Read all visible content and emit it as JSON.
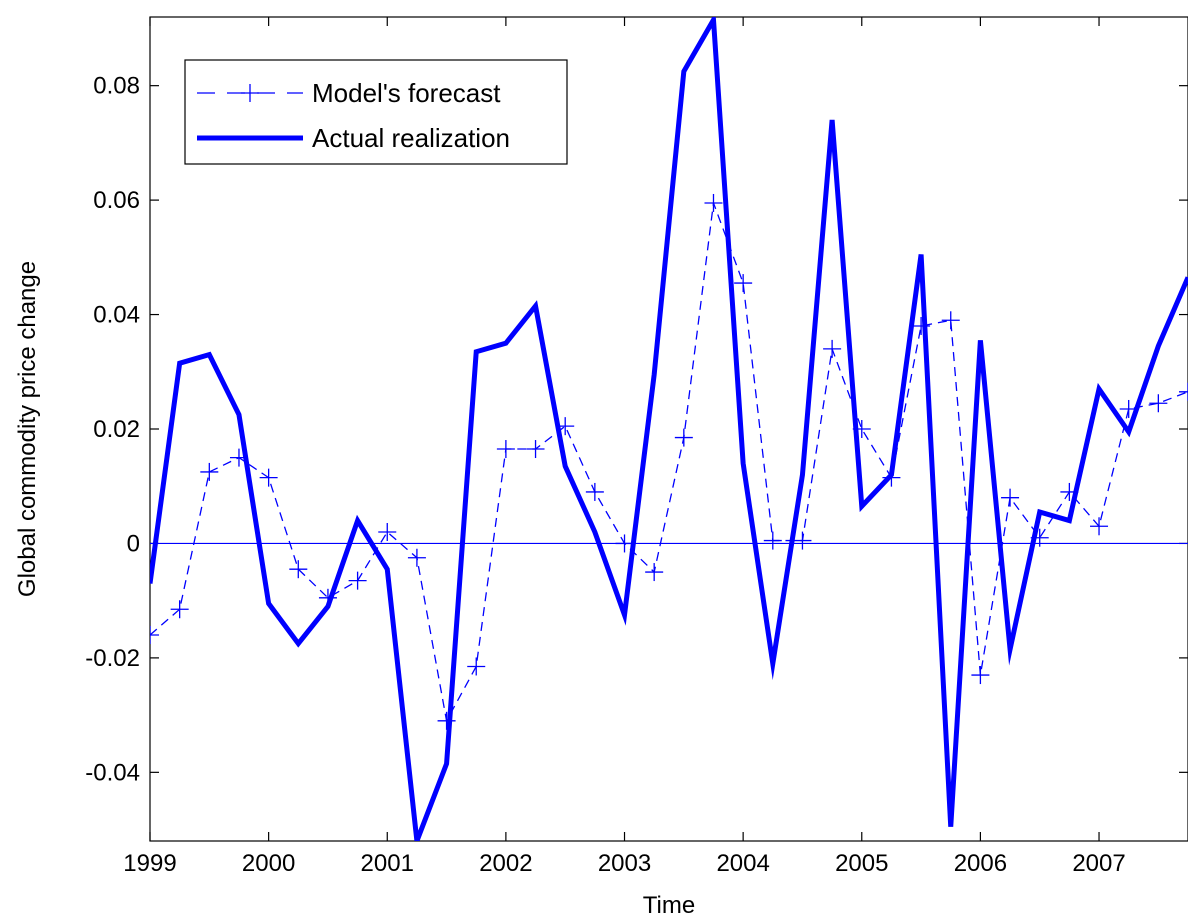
{
  "chart_data": {
    "type": "line",
    "xlabel": "Time",
    "ylabel": "Global commodity price change",
    "xlim": [
      1999,
      2007.75
    ],
    "ylim": [
      -0.052,
      0.092
    ],
    "xticks": [
      1999,
      2000,
      2001,
      2002,
      2003,
      2004,
      2005,
      2006,
      2007
    ],
    "xtick_labels": [
      "1999",
      "2000",
      "2001",
      "2002",
      "2003",
      "2004",
      "2005",
      "2006",
      "2007"
    ],
    "yticks": [
      -0.04,
      -0.02,
      0,
      0.02,
      0.04,
      0.06,
      0.08
    ],
    "ytick_labels": [
      "-0.04",
      "-0.02",
      "0",
      "0.02",
      "0.04",
      "0.06",
      "0.08"
    ],
    "zero_line": 0,
    "grid": false,
    "legend_position": "top-left",
    "x": [
      1999.0,
      1999.25,
      1999.5,
      1999.75,
      2000.0,
      2000.25,
      2000.5,
      2000.75,
      2001.0,
      2001.25,
      2001.5,
      2001.75,
      2002.0,
      2002.25,
      2002.5,
      2002.75,
      2003.0,
      2003.25,
      2003.5,
      2003.75,
      2004.0,
      2004.25,
      2004.5,
      2004.75,
      2005.0,
      2005.25,
      2005.5,
      2005.75,
      2006.0,
      2006.25,
      2006.5,
      2006.75,
      2007.0,
      2007.25,
      2007.5,
      2007.75
    ],
    "series": [
      {
        "name": "Model's forecast",
        "style": "dashed-plus",
        "color": "#0000FF",
        "values": [
          -0.016,
          -0.0115,
          0.0125,
          0.015,
          0.0115,
          -0.0045,
          -0.0095,
          -0.0065,
          0.002,
          -0.0025,
          -0.031,
          -0.0215,
          0.0165,
          0.0165,
          0.0205,
          0.009,
          0.0,
          -0.005,
          0.0185,
          0.0595,
          0.0455,
          0.0005,
          0.0005,
          0.034,
          0.02,
          0.0115,
          0.038,
          0.039,
          -0.023,
          0.008,
          0.001,
          0.009,
          0.003,
          0.0235,
          0.0245,
          0.0265
        ]
      },
      {
        "name": "Actual realization",
        "style": "solid-thick",
        "color": "#0000FF",
        "values": [
          -0.007,
          0.0315,
          0.033,
          0.0225,
          -0.0105,
          -0.0175,
          -0.011,
          0.004,
          -0.0045,
          -0.052,
          -0.0385,
          0.0335,
          0.035,
          0.0415,
          0.0135,
          0.002,
          -0.0125,
          0.0295,
          0.0825,
          0.0915,
          0.014,
          -0.021,
          0.012,
          0.074,
          0.0065,
          0.012,
          0.0505,
          -0.0495,
          0.0355,
          -0.0185,
          0.0055,
          0.004,
          0.027,
          0.0195,
          0.0345,
          0.0465
        ]
      }
    ]
  }
}
